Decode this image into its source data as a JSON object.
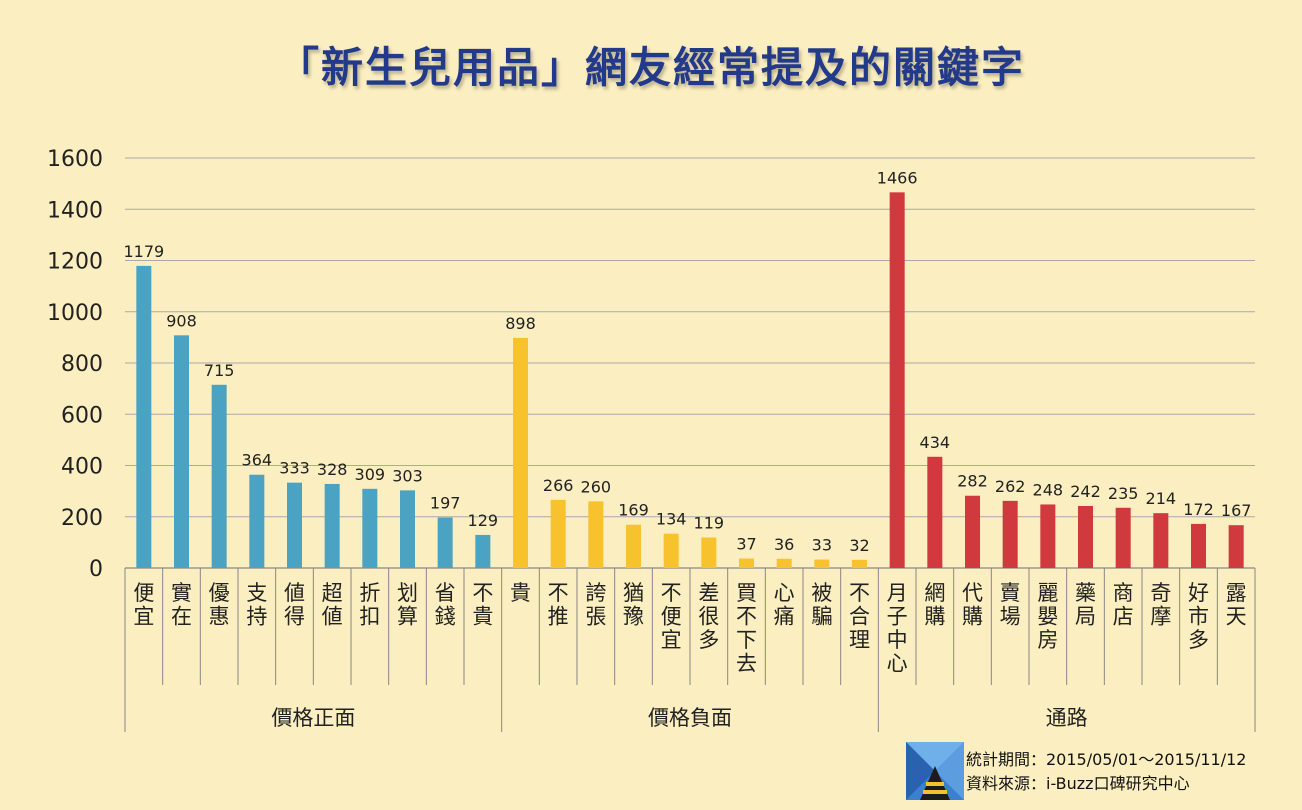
{
  "title": "「新生兒用品」網友經常提及的關鍵字",
  "footer": {
    "period": "統計期間：2015/05/01～2015/11/12",
    "source": "資料來源：i-Buzz口碑研究中心"
  },
  "chart_data": {
    "type": "bar",
    "ylim": [
      0,
      1600
    ],
    "yticks": [
      0,
      200,
      400,
      600,
      800,
      1000,
      1200,
      1400,
      1600
    ],
    "grid": true,
    "groups": [
      {
        "name": "價格正面",
        "color": "#4aa3c3",
        "categories": [
          "便宜",
          "實在",
          "優惠",
          "支持",
          "値得",
          "超値",
          "折扣",
          "划算",
          "省錢",
          "不貴"
        ],
        "values": [
          1179,
          908,
          715,
          364,
          333,
          328,
          309,
          303,
          197,
          129
        ]
      },
      {
        "name": "價格負面",
        "color": "#f8c22e",
        "categories": [
          "貴",
          "不推",
          "誇張",
          "猶豫",
          "不便宜",
          "差很多",
          "買不下去",
          "心痛",
          "被騙",
          "不合理"
        ],
        "values": [
          898,
          266,
          260,
          169,
          134,
          119,
          37,
          36,
          33,
          32
        ]
      },
      {
        "name": "通路",
        "color": "#d0393d",
        "categories": [
          "月子中心",
          "網購",
          "代購",
          "賣場",
          "麗嬰房",
          "藥局",
          "商店",
          "奇摩",
          "好市多",
          "露天"
        ],
        "values": [
          1466,
          434,
          282,
          262,
          248,
          242,
          235,
          214,
          172,
          167
        ]
      }
    ]
  }
}
